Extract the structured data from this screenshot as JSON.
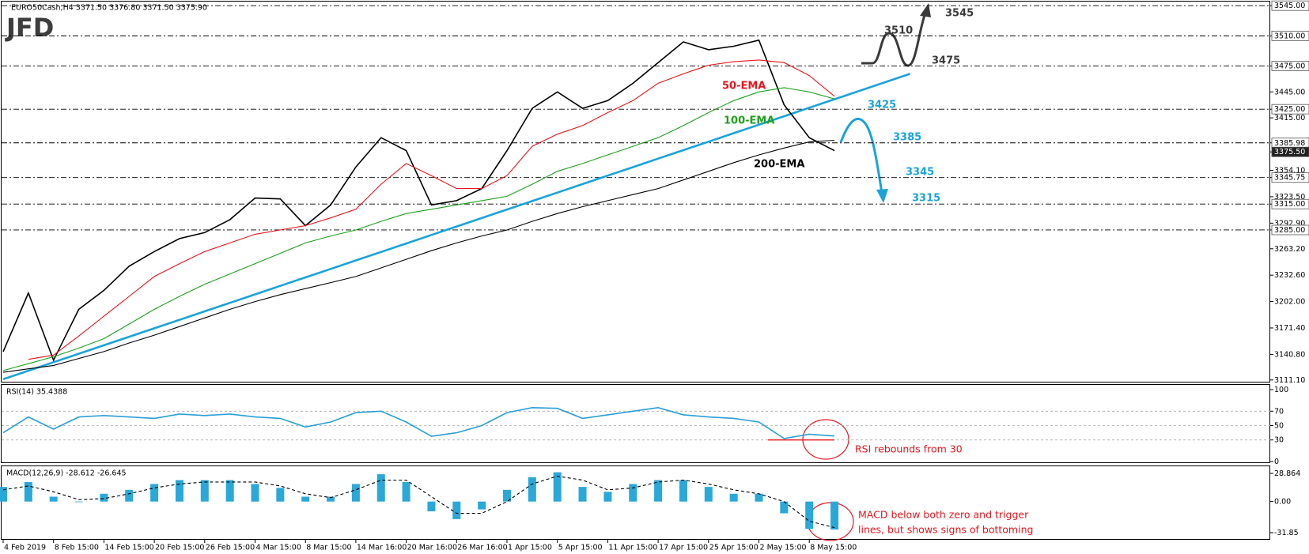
{
  "chart_data": [
    {
      "type": "line",
      "logo": "JFD",
      "title": "EURO50Cash,H4  3371.50 3376.80 3371.50 3375.90",
      "ylim": [
        3110,
        3547
      ],
      "yticks": [
        {
          "value": 3545,
          "label": "3545.00"
        },
        {
          "value": 3510,
          "label": "3510.00"
        },
        {
          "value": 3475,
          "label": "3475.00"
        },
        {
          "value": 3445,
          "label": "3445.00"
        },
        {
          "value": 3425,
          "label": "3425.00"
        },
        {
          "value": 3415,
          "label": "3415.00"
        },
        {
          "value": 3385.98,
          "label": "3385.98"
        },
        {
          "value": 3375.5,
          "label": "3375.50"
        },
        {
          "value": 3354.1,
          "label": "3354.10"
        },
        {
          "value": 3345.75,
          "label": "3345.75"
        },
        {
          "value": 3323.5,
          "label": "3323.50"
        },
        {
          "value": 3315,
          "label": "3315.00"
        },
        {
          "value": 3292.9,
          "label": "3292.90"
        },
        {
          "value": 3285,
          "label": "3285.00"
        },
        {
          "value": 3263.2,
          "label": "3263.20"
        },
        {
          "value": 3232.6,
          "label": "3232.60"
        },
        {
          "value": 3202,
          "label": "3202.00"
        },
        {
          "value": 3171.4,
          "label": "3171.40"
        },
        {
          "value": 3140.8,
          "label": "3140.80"
        },
        {
          "value": 3111.1,
          "label": "3111.10"
        }
      ],
      "levels": [
        3545,
        3510,
        3475,
        3425,
        3385.98,
        3345.75,
        3315,
        3285
      ],
      "current_price": 3375.5,
      "grid": false,
      "series": [
        {
          "color": "#000000",
          "values": [
            3144,
            3212,
            3134,
            3193,
            3215,
            3243,
            3260,
            3275,
            3282,
            3297,
            3322,
            3321,
            3290,
            3314,
            3358,
            3392,
            3377,
            3314,
            3319,
            3333,
            3377,
            3426,
            3445,
            3426,
            3435,
            3455,
            3479,
            3503,
            3494,
            3498,
            3505,
            3430,
            3392,
            3377,
            null,
            null,
            null
          ]
        },
        {
          "name": "50-EMA",
          "color": "#e8141c",
          "values": [
            null,
            3135,
            3140,
            3162,
            3185,
            3208,
            3231,
            3246,
            3260,
            3270,
            3280,
            3285,
            3290,
            3299,
            3309,
            3338,
            3362,
            3348,
            3333,
            3333,
            3348,
            3382,
            3396,
            3406,
            3421,
            3435,
            3455,
            3466,
            3476,
            3480,
            3482,
            3479,
            3464,
            3440,
            null,
            null,
            null
          ]
        },
        {
          "name": "100-EMA",
          "color": "#1ea01e",
          "values": [
            3122,
            3130,
            3138,
            3148,
            3159,
            3176,
            3193,
            3208,
            3222,
            3234,
            3246,
            3258,
            3270,
            3278,
            3285,
            3295,
            3304,
            3309,
            3314,
            3319,
            3324,
            3338,
            3353,
            3362,
            3372,
            3382,
            3392,
            3406,
            3421,
            3435,
            3445,
            3450,
            3445,
            3437,
            null,
            null,
            null
          ]
        },
        {
          "name": "200-EMA",
          "color": "#000000",
          "values": [
            3120,
            3124,
            3128,
            3136,
            3144,
            3154,
            3163,
            3173,
            3183,
            3193,
            3202,
            3210,
            3217,
            3224,
            3231,
            3241,
            3251,
            3261,
            3270,
            3278,
            3285,
            3295,
            3304,
            3312,
            3319,
            3326,
            3333,
            3343,
            3353,
            3363,
            3372,
            3380,
            3387,
            3389,
            null,
            null,
            null
          ]
        }
      ],
      "trendline": {
        "color": "#1aa3d9",
        "values": [
          3112.0,
          3121.8,
          3131.7,
          3141.5,
          3151.3,
          3161.2,
          3171.0,
          3180.8,
          3190.7,
          3200.5,
          3210.3,
          3220.2,
          3230.0,
          3239.8,
          3249.7,
          3259.5,
          3269.3,
          3279.2,
          3289.0,
          3298.8,
          3308.7,
          3318.5,
          3328.3,
          3338.2,
          3348.0,
          3357.8,
          3367.7,
          3377.5,
          3387.3,
          3397.2,
          3407.0,
          3416.8,
          3426.7,
          3436.5,
          3446.3,
          3456.2,
          3466.0
        ]
      },
      "annotations": [
        {
          "text": "3425",
          "color": "#1aa3d9"
        },
        {
          "text": "3385",
          "color": "#1aa3d9"
        },
        {
          "text": "3345",
          "color": "#1aa3d9"
        },
        {
          "text": "3315",
          "color": "#1aa3d9"
        },
        {
          "text": "3510",
          "color": "#3a3a3a"
        },
        {
          "text": "3475",
          "color": "#3a3a3a"
        },
        {
          "text": "3545",
          "color": "#3a3a3a"
        }
      ]
    },
    {
      "type": "line",
      "title": "RSI(14) 35.4388",
      "ylim": [
        0,
        100
      ],
      "yticks": [
        100,
        70,
        50,
        30,
        0
      ],
      "grid": true,
      "support_line": 30,
      "annotation": {
        "text": "RSI rebounds from 30",
        "color": "#e8141c"
      },
      "series": [
        {
          "color": "#2a9fd6",
          "values": [
            40,
            62,
            45,
            62,
            64,
            62,
            60,
            66,
            64,
            66,
            62,
            60,
            48,
            55,
            68,
            70,
            55,
            35,
            40,
            50,
            68,
            75,
            74,
            60,
            65,
            70,
            75,
            65,
            62,
            60,
            55,
            32,
            38,
            35.44,
            null,
            null,
            null
          ]
        }
      ]
    },
    {
      "type": "bar",
      "title": "MACD(12,26,9) -28.612 -26.645",
      "ylim": [
        -31.85,
        28.864
      ],
      "yticks": [
        28.864,
        {
          "value": 0,
          "label": "0.00"
        },
        -31.85
      ],
      "grid": false,
      "annotation": {
        "lines": [
          "MACD below both zero and trigger",
          "lines, but shows signs of bottoming"
        ],
        "color": "#e8141c"
      },
      "categories": [
        "4 Feb 2019",
        null,
        "8 Feb 15:00",
        null,
        "14 Feb 15:00",
        null,
        "20 Feb 15:00",
        null,
        "26 Feb 15:00",
        null,
        "4 Mar 15:00",
        null,
        "8 Mar 15:00",
        null,
        "14 Mar 16:00",
        null,
        "20 Mar 16:00",
        null,
        "26 Mar 16:00",
        null,
        "1 Apr 15:00",
        null,
        "5 Apr 15:00",
        null,
        "11 Apr 15:00",
        null,
        "17 Apr 15:00",
        null,
        "25 Apr 15:00",
        null,
        "2 May 15:00",
        null,
        "8 May 15:00",
        null,
        null,
        null,
        null
      ],
      "series": [
        {
          "color": "#2aa8d8",
          "values": [
            15,
            20,
            5,
            0,
            8,
            12,
            18,
            22,
            22,
            22,
            18,
            14,
            5,
            5,
            18,
            28,
            20,
            -10,
            -18,
            -8,
            12,
            25,
            30,
            15,
            10,
            18,
            22,
            22,
            15,
            8,
            8,
            -12,
            -28,
            -28.61,
            null,
            null,
            null
          ]
        },
        {
          "color": "#000000",
          "type": "line",
          "dashed": true,
          "values": [
            12,
            16,
            10,
            2,
            3,
            8,
            14,
            18,
            20,
            20,
            20,
            16,
            8,
            4,
            12,
            22,
            22,
            5,
            -12,
            -12,
            0,
            18,
            26,
            22,
            12,
            14,
            20,
            22,
            18,
            12,
            8,
            0,
            -20,
            -26.65,
            null,
            null,
            null
          ]
        }
      ]
    }
  ]
}
